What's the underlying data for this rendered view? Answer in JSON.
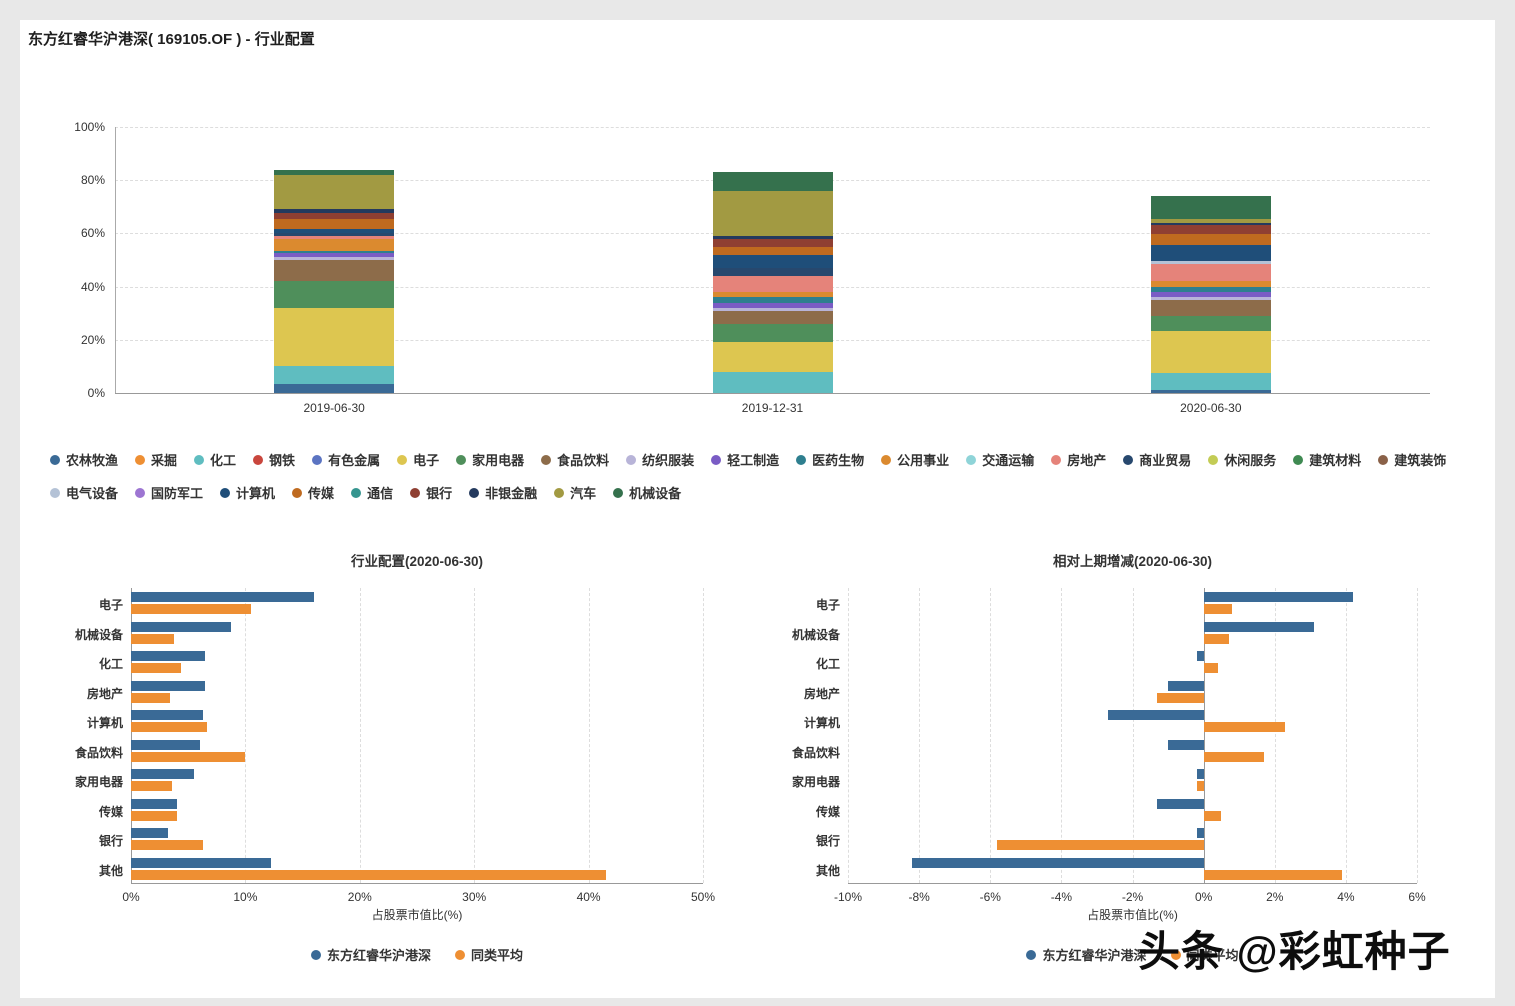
{
  "page": {
    "title": "东方红睿华沪港深( 169105.OF ) - 行业配置"
  },
  "watermark": "头条 @彩虹种子",
  "chart_data": [
    {
      "type": "stacked-bar",
      "categories": [
        "2019-06-30",
        "2019-12-31",
        "2020-06-30"
      ],
      "ylim": [
        0,
        100
      ],
      "yticks": [
        "0%",
        "20%",
        "40%",
        "60%",
        "80%",
        "100%"
      ],
      "unit": "%",
      "series": [
        {
          "name": "农林牧渔",
          "color": "#3a6a96",
          "values": [
            3.5,
            0,
            1
          ]
        },
        {
          "name": "采掘",
          "color": "#ee8f33",
          "values": [
            0,
            0,
            0
          ]
        },
        {
          "name": "化工",
          "color": "#5fbdc0",
          "values": [
            6.5,
            8,
            6.5
          ]
        },
        {
          "name": "钢铁",
          "color": "#c9463d",
          "values": [
            0,
            0,
            0
          ]
        },
        {
          "name": "有色金属",
          "color": "#5b74c2",
          "values": [
            0,
            0,
            0
          ]
        },
        {
          "name": "电子",
          "color": "#ddc650",
          "values": [
            22,
            11,
            16
          ]
        },
        {
          "name": "家用电器",
          "color": "#4f8f5b",
          "values": [
            10,
            7,
            5.5
          ]
        },
        {
          "name": "食品饮料",
          "color": "#8d6c4a",
          "values": [
            8,
            5,
            6
          ]
        },
        {
          "name": "纺织服装",
          "color": "#b8b4d8",
          "values": [
            1,
            1,
            1
          ]
        },
        {
          "name": "轻工制造",
          "color": "#7a5cc5",
          "values": [
            1.5,
            2,
            2
          ]
        },
        {
          "name": "医药生物",
          "color": "#2e7f8f",
          "values": [
            1,
            2,
            2
          ]
        },
        {
          "name": "公用事业",
          "color": "#db8a2f",
          "values": [
            4.5,
            2,
            2
          ]
        },
        {
          "name": "交通运输",
          "color": "#8fd4d8",
          "values": [
            0,
            0,
            0
          ]
        },
        {
          "name": "房地产",
          "color": "#e5837a",
          "values": [
            1,
            6,
            6.5
          ]
        },
        {
          "name": "商业贸易",
          "color": "#27486e",
          "values": [
            1,
            3,
            0
          ]
        },
        {
          "name": "休闲服务",
          "color": "#c3cc55",
          "values": [
            0,
            0,
            0
          ]
        },
        {
          "name": "建筑材料",
          "color": "#3f8a52",
          "values": [
            0,
            0,
            0
          ]
        },
        {
          "name": "建筑装饰",
          "color": "#8a6148",
          "values": [
            0,
            0,
            0
          ]
        },
        {
          "name": "电气设备",
          "color": "#b4c2d6",
          "values": [
            0,
            0,
            1
          ]
        },
        {
          "name": "国防军工",
          "color": "#9d75d2",
          "values": [
            0,
            0,
            0
          ]
        },
        {
          "name": "计算机",
          "color": "#1f4e79",
          "values": [
            1.5,
            5,
            6.3
          ]
        },
        {
          "name": "传媒",
          "color": "#bf6a1f",
          "values": [
            4,
            3,
            4
          ]
        },
        {
          "name": "通信",
          "color": "#35958f",
          "values": [
            0,
            0,
            0
          ]
        },
        {
          "name": "银行",
          "color": "#8f3f32",
          "values": [
            2,
            3,
            3.2
          ]
        },
        {
          "name": "非银金融",
          "color": "#243a5e",
          "values": [
            1.5,
            1,
            1
          ]
        },
        {
          "name": "汽车",
          "color": "#a29a42",
          "values": [
            13,
            17,
            1.5
          ]
        },
        {
          "name": "机械设备",
          "color": "#35714d",
          "values": [
            2,
            7,
            8.7
          ]
        }
      ]
    },
    {
      "type": "bar",
      "orientation": "horizontal",
      "title": "行业配置(2020-06-30)",
      "categories": [
        "电子",
        "机械设备",
        "化工",
        "房地产",
        "计算机",
        "食品饮料",
        "家用电器",
        "传媒",
        "银行",
        "其他"
      ],
      "series": [
        {
          "name": "东方红睿华沪港深",
          "color": "#3a6a96",
          "values": [
            16,
            8.7,
            6.5,
            6.5,
            6.3,
            6,
            5.5,
            4,
            3.2,
            12.2
          ]
        },
        {
          "name": "同类平均",
          "color": "#ee8f33",
          "values": [
            10.5,
            3.8,
            4.4,
            3.4,
            6.6,
            10,
            3.6,
            4,
            6.3,
            41.5
          ]
        }
      ],
      "xlabel": "占股票市值比(%)",
      "xlim": [
        0,
        50
      ],
      "xticks": [
        0,
        10,
        20,
        30,
        40,
        50
      ],
      "xtick_labels": [
        "0%",
        "10%",
        "20%",
        "30%",
        "40%",
        "50%"
      ]
    },
    {
      "type": "bar",
      "orientation": "horizontal",
      "title": "相对上期增减(2020-06-30)",
      "categories": [
        "电子",
        "机械设备",
        "化工",
        "房地产",
        "计算机",
        "食品饮料",
        "家用电器",
        "传媒",
        "银行",
        "其他"
      ],
      "series": [
        {
          "name": "东方红睿华沪港深",
          "color": "#3a6a96",
          "values": [
            4.2,
            3.1,
            -0.2,
            -1,
            -2.7,
            -1,
            -0.2,
            -1.3,
            -0.2,
            -8.2
          ]
        },
        {
          "name": "同类平均",
          "color": "#ee8f33",
          "values": [
            0.8,
            0.7,
            0.4,
            -1.3,
            2.3,
            1.7,
            -0.2,
            0.5,
            -5.8,
            3.9
          ]
        }
      ],
      "xlabel": "占股票市值比(%)",
      "xlim": [
        -10,
        6
      ],
      "xticks": [
        -10,
        -8,
        -6,
        -4,
        -2,
        0,
        2,
        4,
        6
      ],
      "xtick_labels": [
        "-10%",
        "-8%",
        "-6%",
        "-4%",
        "-2%",
        "0%",
        "2%",
        "4%",
        "6%"
      ]
    }
  ]
}
